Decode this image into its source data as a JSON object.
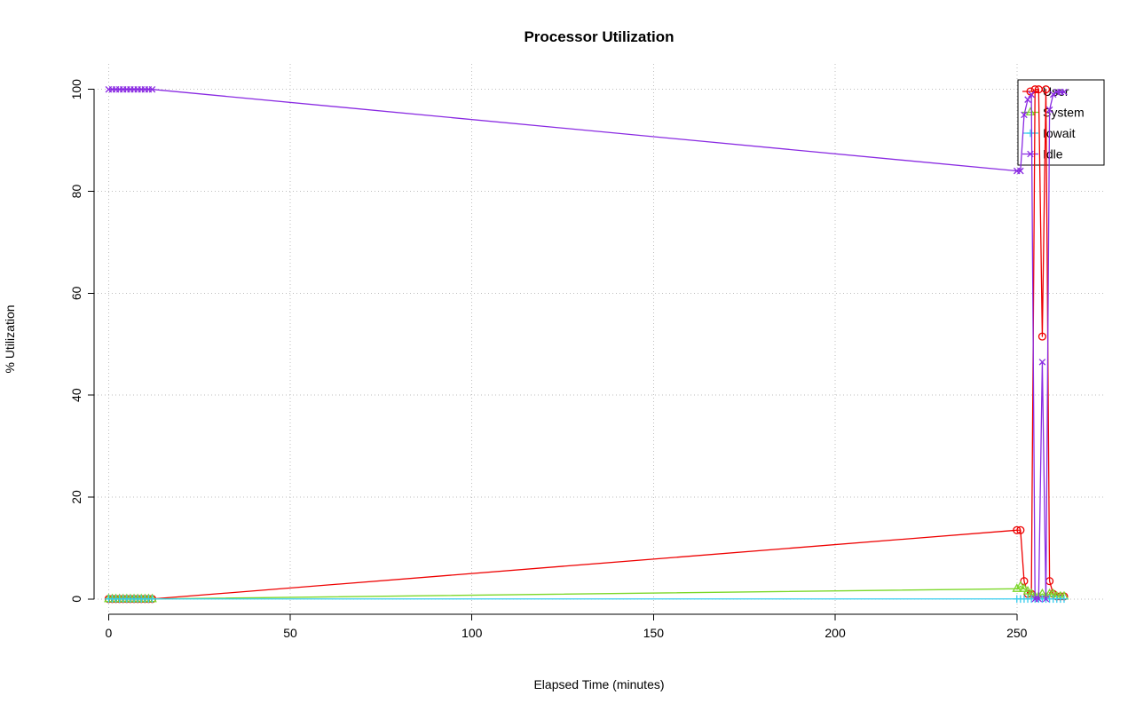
{
  "chart_data": {
    "type": "line",
    "title": "Processor Utilization",
    "xlabel": "Elapsed Time (minutes)",
    "ylabel": "% Utilization",
    "xlim": [
      -4,
      274
    ],
    "ylim": [
      -3,
      105
    ],
    "xticks": [
      0,
      50,
      100,
      150,
      200,
      250
    ],
    "yticks": [
      0,
      20,
      40,
      60,
      80,
      100
    ],
    "grid": true,
    "grid_color": "#bebebe",
    "axis_color": "#000000",
    "background": "#ffffff",
    "legend": {
      "position": "topright",
      "border_color": "#000000",
      "fill": "#ffffff"
    },
    "x": [
      0,
      1,
      2,
      3,
      4,
      5,
      6,
      7,
      8,
      9,
      10,
      11,
      12,
      250,
      251,
      252,
      253,
      254,
      255,
      256,
      257,
      258,
      259,
      260,
      261,
      262,
      263
    ],
    "series": [
      {
        "name": "User",
        "color": "#ee0000",
        "marker": "circle",
        "values": [
          0,
          0,
          0,
          0,
          0,
          0,
          0,
          0,
          0,
          0,
          0,
          0,
          0,
          13.5,
          13.5,
          3.5,
          1,
          1,
          100,
          100,
          51.5,
          100,
          3.5,
          1,
          0.5,
          0.5,
          0.5
        ]
      },
      {
        "name": "System",
        "color": "#7cd82a",
        "marker": "triangle",
        "values": [
          0,
          0,
          0,
          0,
          0,
          0,
          0,
          0,
          0,
          0,
          0,
          0,
          0,
          2,
          2.5,
          2,
          1.5,
          1,
          0.5,
          0.5,
          1,
          0.5,
          1,
          1,
          0.5,
          0.5,
          0.5
        ]
      },
      {
        "name": "Iowait",
        "color": "#35ccee",
        "marker": "plus",
        "values": [
          0,
          0,
          0,
          0,
          0,
          0,
          0,
          0,
          0,
          0,
          0,
          0,
          0,
          0,
          0,
          0,
          0,
          0,
          0,
          0,
          0,
          0,
          0,
          0,
          0,
          0,
          0
        ]
      },
      {
        "name": "Idle",
        "color": "#8a2be2",
        "marker": "x",
        "values": [
          100,
          100,
          100,
          100,
          100,
          100,
          100,
          100,
          100,
          100,
          100,
          100,
          100,
          84,
          84,
          95,
          98,
          99,
          0,
          0,
          46.5,
          0,
          96,
          99,
          99.5,
          99.5,
          99.5
        ]
      }
    ]
  }
}
